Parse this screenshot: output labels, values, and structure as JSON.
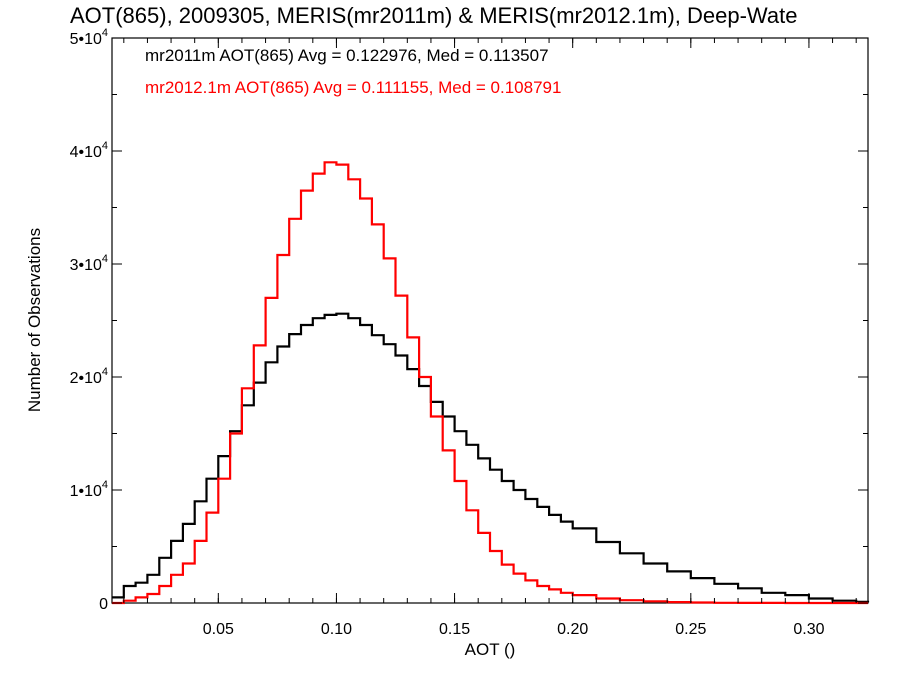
{
  "chart_data": {
    "type": "line",
    "title": "AOT(865), 2009305, MERIS(mr2011m) & MERIS(mr2012.1m), Deep-Wate",
    "xlabel": "AOT ()",
    "ylabel": "Number of Observations",
    "xlim": [
      0.005,
      0.325
    ],
    "ylim": [
      0,
      50000
    ],
    "grid": false,
    "xticks": [
      {
        "value": 0.05,
        "label": "0.05"
      },
      {
        "value": 0.1,
        "label": "0.10"
      },
      {
        "value": 0.15,
        "label": "0.15"
      },
      {
        "value": 0.2,
        "label": "0.20"
      },
      {
        "value": 0.25,
        "label": "0.25"
      },
      {
        "value": 0.3,
        "label": "0.30"
      }
    ],
    "yticks": [
      {
        "value": 0,
        "mant": "0",
        "exp": ""
      },
      {
        "value": 10000,
        "mant": "1•10",
        "exp": "4"
      },
      {
        "value": 20000,
        "mant": "2•10",
        "exp": "4"
      },
      {
        "value": 30000,
        "mant": "3•10",
        "exp": "4"
      },
      {
        "value": 40000,
        "mant": "4•10",
        "exp": "4"
      },
      {
        "value": 50000,
        "mant": "5•10",
        "exp": "4"
      }
    ],
    "annotations": [
      {
        "text": "mr2011m AOT(865) Avg = 0.122976, Med = 0.113507",
        "color": "#000000"
      },
      {
        "text": "mr2012.1m AOT(865) Avg = 0.111155, Med = 0.108791",
        "color": "#ff0000"
      }
    ],
    "series": [
      {
        "color": "#000000",
        "x": [
          0.005,
          0.01,
          0.015,
          0.02,
          0.025,
          0.03,
          0.035,
          0.04,
          0.045,
          0.05,
          0.055,
          0.06,
          0.065,
          0.07,
          0.075,
          0.08,
          0.085,
          0.09,
          0.095,
          0.1,
          0.105,
          0.11,
          0.115,
          0.12,
          0.125,
          0.13,
          0.135,
          0.14,
          0.145,
          0.15,
          0.155,
          0.16,
          0.165,
          0.17,
          0.175,
          0.18,
          0.185,
          0.19,
          0.195,
          0.2,
          0.21,
          0.22,
          0.23,
          0.24,
          0.25,
          0.26,
          0.27,
          0.28,
          0.29,
          0.3,
          0.31,
          0.32,
          0.325
        ],
        "y": [
          500,
          1500,
          1800,
          2500,
          4000,
          5500,
          7000,
          9000,
          11000,
          13000,
          15200,
          17500,
          19500,
          21300,
          22700,
          23800,
          24600,
          25200,
          25500,
          25600,
          25200,
          24600,
          23700,
          22900,
          21900,
          20700,
          19200,
          17800,
          16500,
          15200,
          14000,
          12800,
          11800,
          10800,
          10000,
          9200,
          8500,
          7800,
          7200,
          6600,
          5400,
          4400,
          3500,
          2800,
          2200,
          1700,
          1300,
          900,
          700,
          400,
          200,
          100,
          50
        ]
      },
      {
        "color": "#ff0000",
        "x": [
          0.005,
          0.01,
          0.015,
          0.02,
          0.025,
          0.03,
          0.035,
          0.04,
          0.045,
          0.05,
          0.055,
          0.06,
          0.065,
          0.07,
          0.075,
          0.08,
          0.085,
          0.09,
          0.095,
          0.1,
          0.105,
          0.11,
          0.115,
          0.12,
          0.125,
          0.13,
          0.135,
          0.14,
          0.145,
          0.15,
          0.155,
          0.16,
          0.165,
          0.17,
          0.175,
          0.18,
          0.185,
          0.19,
          0.195,
          0.2,
          0.21,
          0.22,
          0.23,
          0.24,
          0.25,
          0.26,
          0.27,
          0.28,
          0.29,
          0.3,
          0.31,
          0.32,
          0.325
        ],
        "y": [
          0,
          200,
          500,
          800,
          1500,
          2500,
          3500,
          5500,
          8000,
          11000,
          15000,
          19000,
          22800,
          27000,
          30800,
          34000,
          36500,
          38000,
          39000,
          38800,
          37500,
          35800,
          33500,
          30500,
          27200,
          23500,
          20000,
          16500,
          13500,
          10800,
          8200,
          6200,
          4600,
          3400,
          2600,
          2000,
          1500,
          1200,
          900,
          700,
          400,
          250,
          150,
          80,
          40,
          20,
          10,
          5,
          0,
          0,
          0,
          0,
          0
        ]
      }
    ]
  }
}
